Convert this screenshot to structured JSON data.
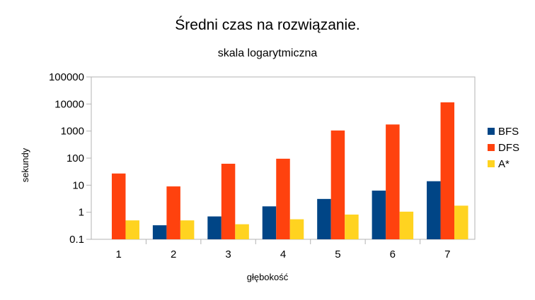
{
  "chart_data": {
    "type": "bar",
    "title": "Średni czas na rozwiązanie.",
    "subtitle": "skala logarytmiczna",
    "xlabel": "głębokość",
    "ylabel": "sekundy",
    "categories": [
      "1",
      "2",
      "3",
      "4",
      "5",
      "6",
      "7"
    ],
    "y_scale": "log",
    "ylim": [
      0.1,
      100000
    ],
    "y_ticks": [
      "0.1",
      "1",
      "10",
      "100",
      "1000",
      "10000",
      "100000"
    ],
    "grid": false,
    "legend_position": "right",
    "series": [
      {
        "name": "BFS",
        "color": "#004586",
        "values": [
          0.1,
          0.33,
          0.7,
          1.65,
          3.1,
          6.3,
          14
        ]
      },
      {
        "name": "DFS",
        "color": "#FF420E",
        "values": [
          27,
          9,
          62,
          95,
          1050,
          1750,
          11500
        ]
      },
      {
        "name": "A*",
        "color": "#FFD320",
        "values": [
          0.5,
          0.5,
          0.36,
          0.55,
          0.82,
          1.05,
          1.75
        ]
      }
    ]
  }
}
